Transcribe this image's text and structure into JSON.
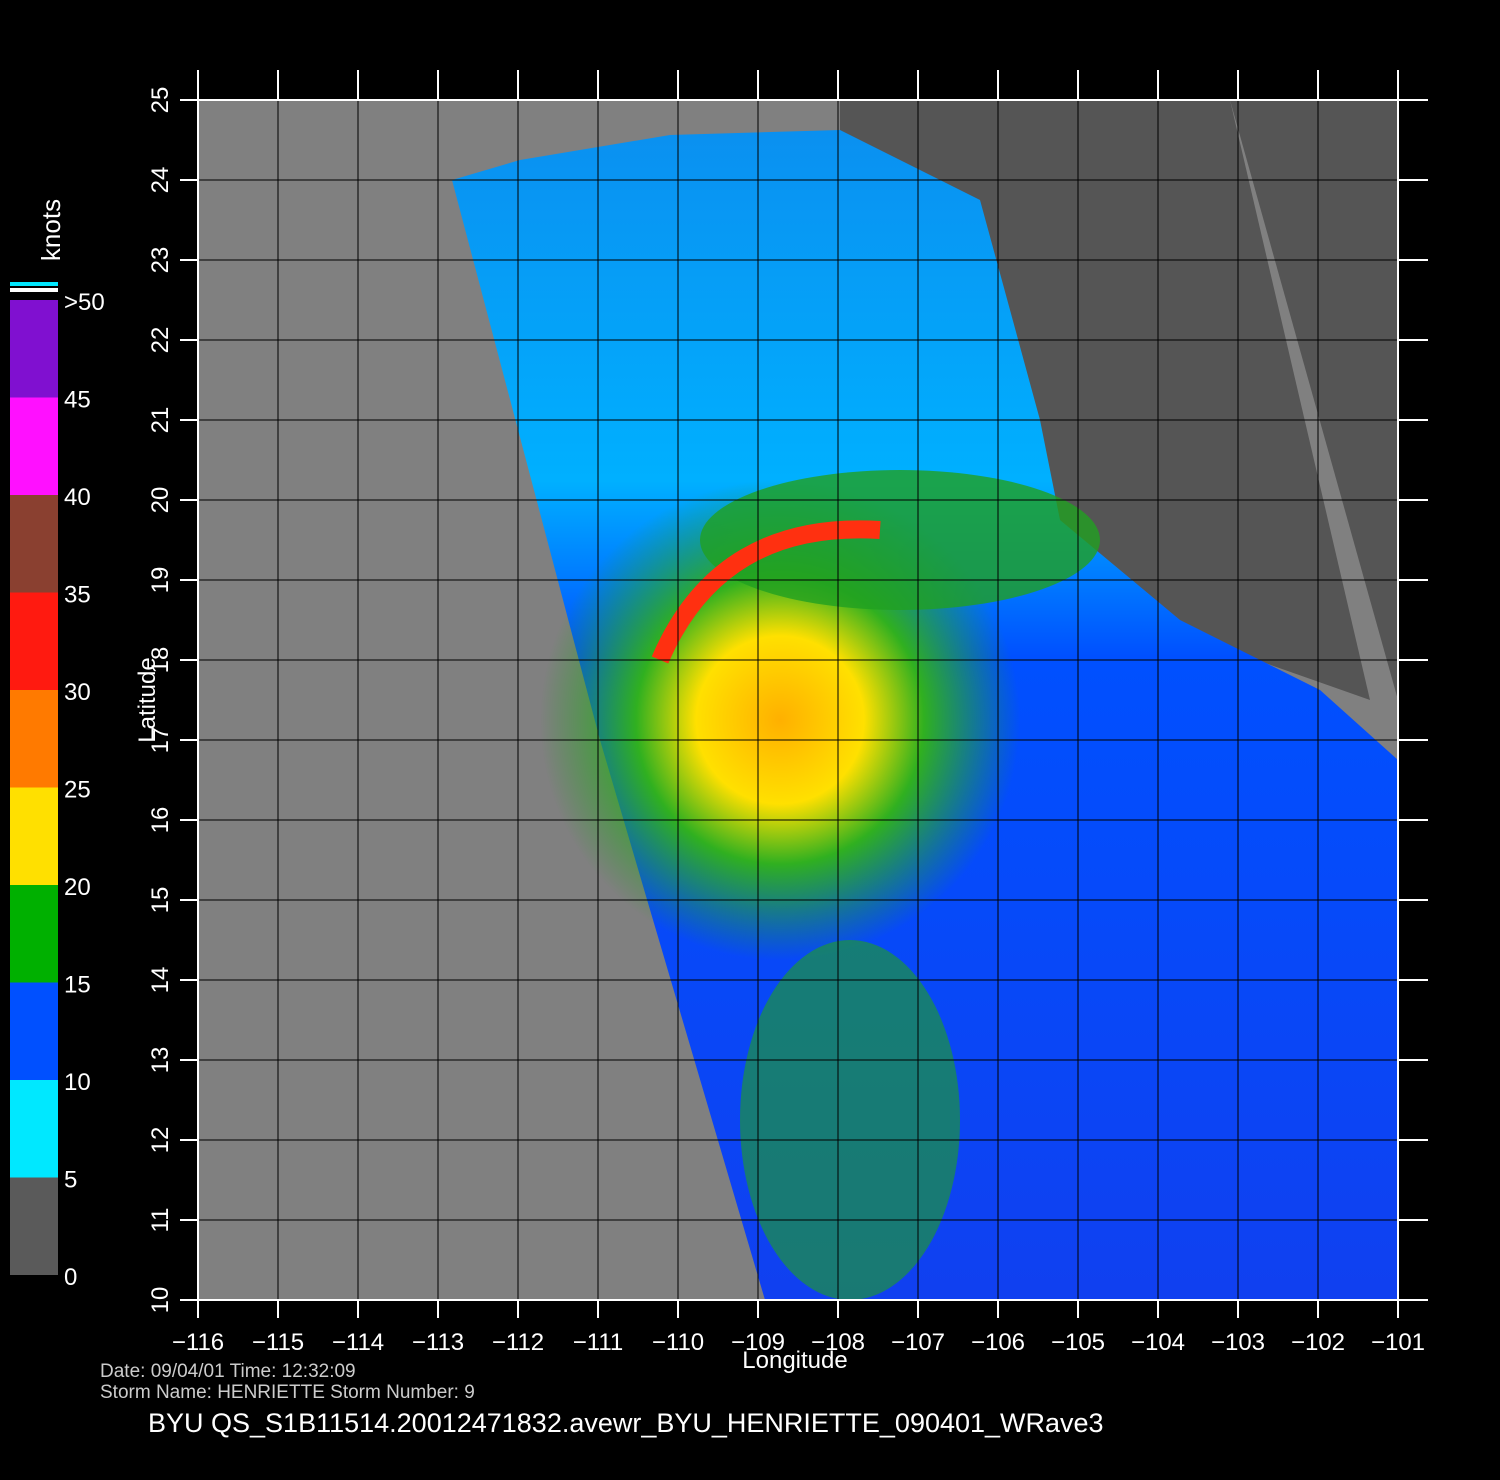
{
  "chart_data": {
    "type": "map",
    "xlabel": "Longitude",
    "ylabel": "Latitude",
    "xlim": [
      -116,
      -101
    ],
    "ylim": [
      10,
      25
    ],
    "xticks": [
      {
        "value": -116,
        "label": "−116"
      },
      {
        "value": -115,
        "label": "−115"
      },
      {
        "value": -114,
        "label": "−114"
      },
      {
        "value": -113,
        "label": "−113"
      },
      {
        "value": -112,
        "label": "−112"
      },
      {
        "value": -111,
        "label": "−111"
      },
      {
        "value": -110,
        "label": "−110"
      },
      {
        "value": -109,
        "label": "−109"
      },
      {
        "value": -108,
        "label": "−108"
      },
      {
        "value": -107,
        "label": "−107"
      },
      {
        "value": -106,
        "label": "−106"
      },
      {
        "value": -105,
        "label": "−105"
      },
      {
        "value": -104,
        "label": "−104"
      },
      {
        "value": -103,
        "label": "−103"
      },
      {
        "value": -102,
        "label": "−102"
      },
      {
        "value": -101,
        "label": "−101"
      }
    ],
    "yticks": [
      10,
      11,
      12,
      13,
      14,
      15,
      16,
      17,
      18,
      19,
      20,
      21,
      22,
      23,
      24,
      25
    ],
    "grid": true,
    "colorbar": {
      "label": "knots",
      "range": [
        0,
        50
      ],
      "ticks": [
        0,
        5,
        10,
        15,
        20,
        25,
        30,
        35,
        40,
        45,
        {
          "value": 50,
          "label": ">50"
        }
      ],
      "colors": [
        "#5a5a5a",
        "#00e8ff",
        "#0050ff",
        "#00b000",
        "#ffe000",
        "#ff7a00",
        "#ff1a10",
        "#8a4030",
        "#ff10ff",
        "#8010d0"
      ]
    },
    "info_line_1": "Date:  09/04/01   Time:  12:32:09",
    "info_line_2": "Storm  Name:  HENRIETTE   Storm  Number:  9",
    "caption": "BYU  QS_S1B11514.20012471832.avewr_BYU_HENRIETTE_090401_WRave3"
  }
}
